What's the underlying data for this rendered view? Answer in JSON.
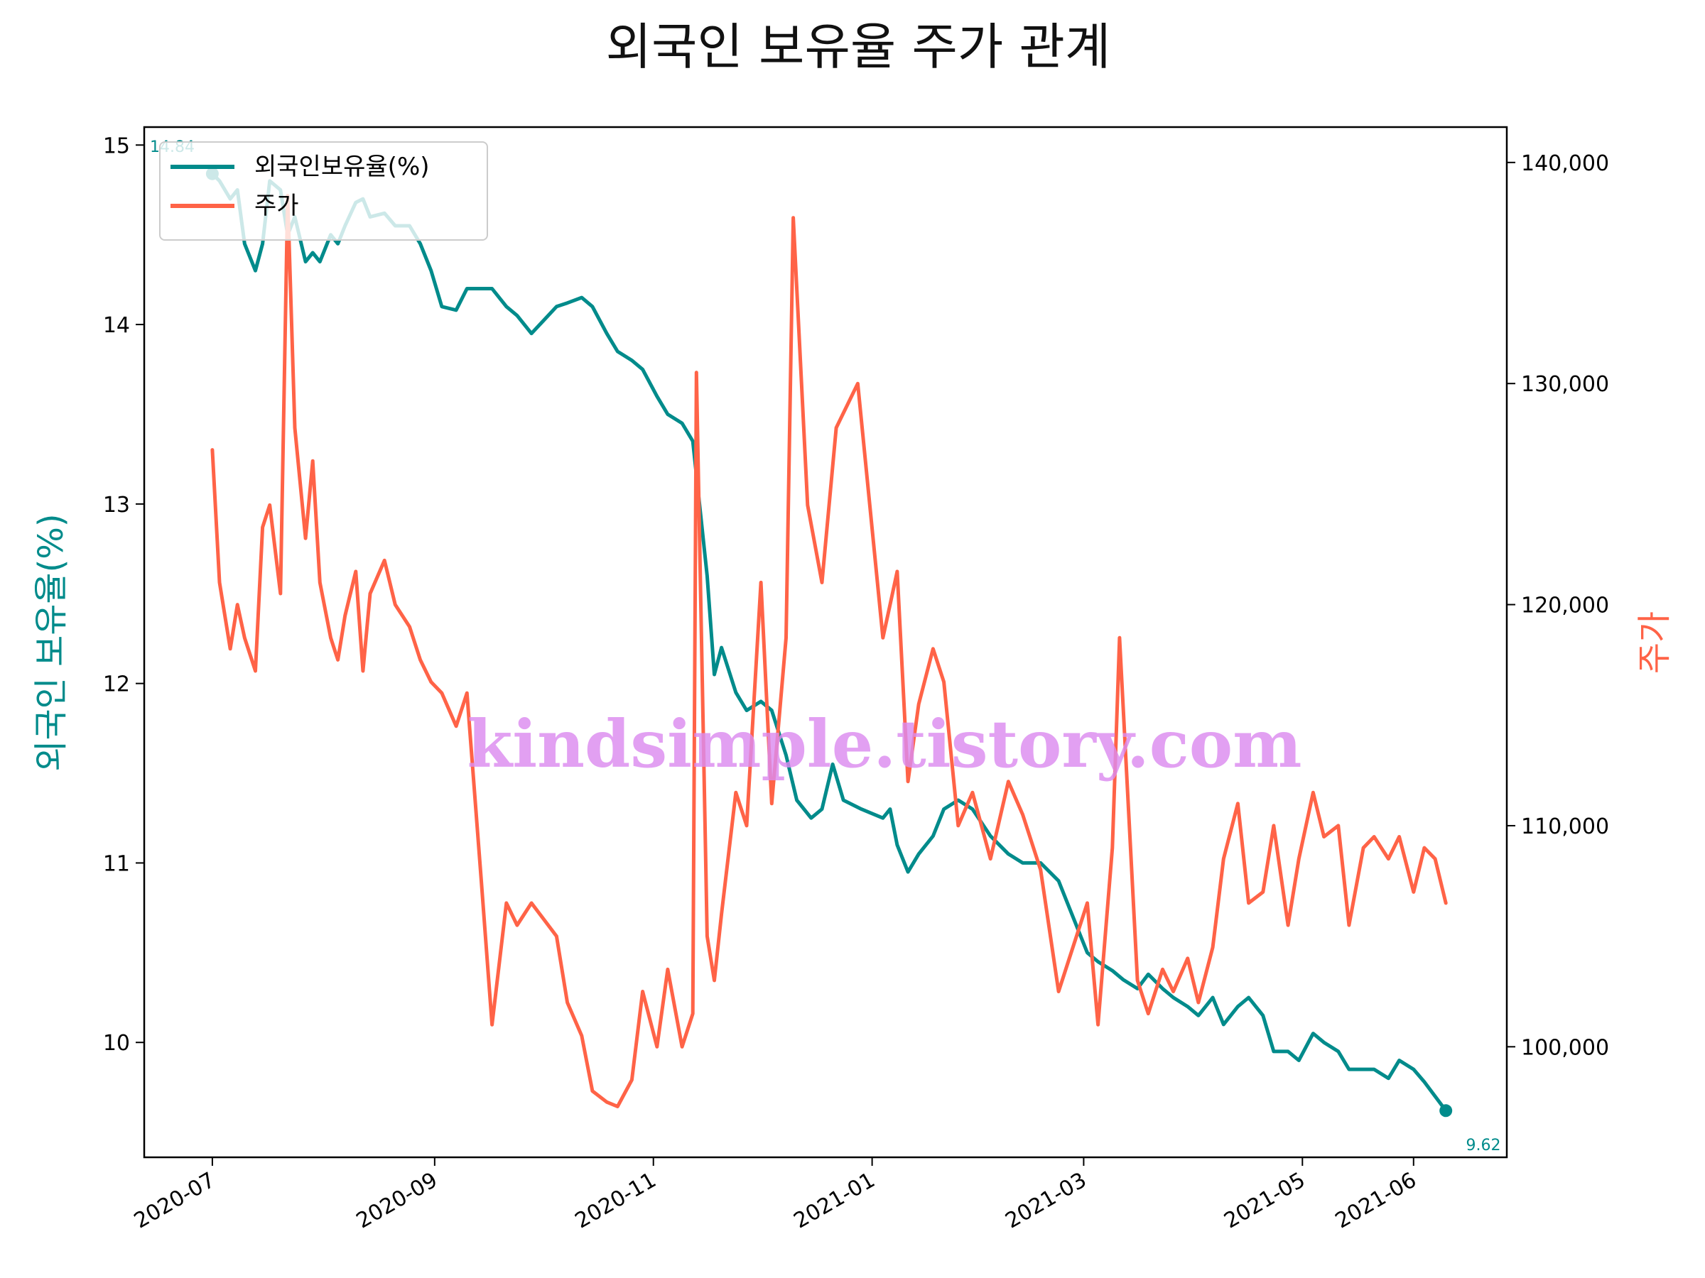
{
  "chart_data": {
    "type": "line",
    "title": "외국인 보유율 주가 관계",
    "y_left_label": "외국인 보유율(%)",
    "y_right_label": "주가",
    "x_ticks": [
      "2020-07",
      "2020-09",
      "2020-11",
      "2021-01",
      "2021-03",
      "2021-05",
      "2021-06"
    ],
    "y_left_ticks": [
      "10",
      "11",
      "12",
      "13",
      "14",
      "15"
    ],
    "y_right_ticks": [
      "100,000",
      "110,000",
      "120,000",
      "130,000",
      "140,000"
    ],
    "y_left_range": [
      9.36,
      15.1
    ],
    "y_right_range": [
      95000,
      141600
    ],
    "x_range": [
      "2020-06-12",
      "2021-06-27"
    ],
    "grid": false,
    "legend_position": "upper-left",
    "watermark": "kindsimple.tistory.com",
    "start_label": "14.84",
    "end_label": "9.62",
    "colors": {
      "ownership": "#008b8b",
      "price": "#ff6347",
      "watermark": "#dc8cf0"
    },
    "series": [
      {
        "name": "외국인보유율(%)",
        "axis": "left",
        "points": [
          [
            "2020-07-01",
            14.84
          ],
          [
            "2020-07-03",
            14.8
          ],
          [
            "2020-07-06",
            14.7
          ],
          [
            "2020-07-08",
            14.75
          ],
          [
            "2020-07-10",
            14.45
          ],
          [
            "2020-07-13",
            14.3
          ],
          [
            "2020-07-15",
            14.45
          ],
          [
            "2020-07-17",
            14.8
          ],
          [
            "2020-07-20",
            14.75
          ],
          [
            "2020-07-22",
            14.5
          ],
          [
            "2020-07-24",
            14.6
          ],
          [
            "2020-07-27",
            14.35
          ],
          [
            "2020-07-29",
            14.4
          ],
          [
            "2020-07-31",
            14.35
          ],
          [
            "2020-08-03",
            14.5
          ],
          [
            "2020-08-05",
            14.45
          ],
          [
            "2020-08-07",
            14.55
          ],
          [
            "2020-08-10",
            14.68
          ],
          [
            "2020-08-12",
            14.7
          ],
          [
            "2020-08-14",
            14.6
          ],
          [
            "2020-08-18",
            14.62
          ],
          [
            "2020-08-21",
            14.55
          ],
          [
            "2020-08-25",
            14.55
          ],
          [
            "2020-08-28",
            14.45
          ],
          [
            "2020-08-31",
            14.3
          ],
          [
            "2020-09-03",
            14.1
          ],
          [
            "2020-09-07",
            14.08
          ],
          [
            "2020-09-10",
            14.2
          ],
          [
            "2020-09-14",
            14.2
          ],
          [
            "2020-09-17",
            14.2
          ],
          [
            "2020-09-21",
            14.1
          ],
          [
            "2020-09-24",
            14.05
          ],
          [
            "2020-09-28",
            13.95
          ],
          [
            "2020-10-05",
            14.1
          ],
          [
            "2020-10-08",
            14.12
          ],
          [
            "2020-10-12",
            14.15
          ],
          [
            "2020-10-15",
            14.1
          ],
          [
            "2020-10-19",
            13.95
          ],
          [
            "2020-10-22",
            13.85
          ],
          [
            "2020-10-26",
            13.8
          ],
          [
            "2020-10-29",
            13.75
          ],
          [
            "2020-11-02",
            13.6
          ],
          [
            "2020-11-05",
            13.5
          ],
          [
            "2020-11-09",
            13.45
          ],
          [
            "2020-11-12",
            13.35
          ],
          [
            "2020-11-16",
            12.6
          ],
          [
            "2020-11-18",
            12.05
          ],
          [
            "2020-11-20",
            12.2
          ],
          [
            "2020-11-24",
            11.95
          ],
          [
            "2020-11-27",
            11.85
          ],
          [
            "2020-12-01",
            11.9
          ],
          [
            "2020-12-04",
            11.85
          ],
          [
            "2020-12-08",
            11.6
          ],
          [
            "2020-12-11",
            11.35
          ],
          [
            "2020-12-15",
            11.25
          ],
          [
            "2020-12-18",
            11.3
          ],
          [
            "2020-12-21",
            11.55
          ],
          [
            "2020-12-24",
            11.35
          ],
          [
            "2020-12-29",
            11.3
          ],
          [
            "2021-01-04",
            11.25
          ],
          [
            "2021-01-06",
            11.3
          ],
          [
            "2021-01-08",
            11.1
          ],
          [
            "2021-01-11",
            10.95
          ],
          [
            "2021-01-14",
            11.05
          ],
          [
            "2021-01-18",
            11.15
          ],
          [
            "2021-01-21",
            11.3
          ],
          [
            "2021-01-25",
            11.35
          ],
          [
            "2021-01-29",
            11.3
          ],
          [
            "2021-02-03",
            11.15
          ],
          [
            "2021-02-08",
            11.05
          ],
          [
            "2021-02-12",
            11.0
          ],
          [
            "2021-02-17",
            11.0
          ],
          [
            "2021-02-22",
            10.9
          ],
          [
            "2021-02-25",
            10.75
          ],
          [
            "2021-03-02",
            10.5
          ],
          [
            "2021-03-05",
            10.45
          ],
          [
            "2021-03-09",
            10.4
          ],
          [
            "2021-03-12",
            10.35
          ],
          [
            "2021-03-16",
            10.3
          ],
          [
            "2021-03-19",
            10.38
          ],
          [
            "2021-03-23",
            10.3
          ],
          [
            "2021-03-26",
            10.25
          ],
          [
            "2021-03-30",
            10.2
          ],
          [
            "2021-04-02",
            10.15
          ],
          [
            "2021-04-06",
            10.25
          ],
          [
            "2021-04-09",
            10.1
          ],
          [
            "2021-04-13",
            10.2
          ],
          [
            "2021-04-16",
            10.25
          ],
          [
            "2021-04-20",
            10.15
          ],
          [
            "2021-04-23",
            9.95
          ],
          [
            "2021-04-27",
            9.95
          ],
          [
            "2021-04-30",
            9.9
          ],
          [
            "2021-05-04",
            10.05
          ],
          [
            "2021-05-07",
            10.0
          ],
          [
            "2021-05-11",
            9.95
          ],
          [
            "2021-05-14",
            9.85
          ],
          [
            "2021-05-18",
            9.85
          ],
          [
            "2021-05-21",
            9.85
          ],
          [
            "2021-05-25",
            9.8
          ],
          [
            "2021-05-28",
            9.9
          ],
          [
            "2021-06-01",
            9.85
          ],
          [
            "2021-06-04",
            9.78
          ],
          [
            "2021-06-07",
            9.7
          ],
          [
            "2021-06-10",
            9.62
          ]
        ]
      },
      {
        "name": "주가",
        "axis": "right",
        "points": [
          [
            "2020-07-01",
            127000
          ],
          [
            "2020-07-03",
            121000
          ],
          [
            "2020-07-06",
            118000
          ],
          [
            "2020-07-08",
            120000
          ],
          [
            "2020-07-10",
            118500
          ],
          [
            "2020-07-13",
            117000
          ],
          [
            "2020-07-15",
            123500
          ],
          [
            "2020-07-17",
            124500
          ],
          [
            "2020-07-20",
            120500
          ],
          [
            "2020-07-22",
            138500
          ],
          [
            "2020-07-24",
            128000
          ],
          [
            "2020-07-27",
            123000
          ],
          [
            "2020-07-29",
            126500
          ],
          [
            "2020-07-31",
            121000
          ],
          [
            "2020-08-03",
            118500
          ],
          [
            "2020-08-05",
            117500
          ],
          [
            "2020-08-07",
            119500
          ],
          [
            "2020-08-10",
            121500
          ],
          [
            "2020-08-12",
            117000
          ],
          [
            "2020-08-14",
            120500
          ],
          [
            "2020-08-18",
            122000
          ],
          [
            "2020-08-21",
            120000
          ],
          [
            "2020-08-25",
            119000
          ],
          [
            "2020-08-28",
            117500
          ],
          [
            "2020-08-31",
            116500
          ],
          [
            "2020-09-03",
            116000
          ],
          [
            "2020-09-07",
            114500
          ],
          [
            "2020-09-10",
            116000
          ],
          [
            "2020-09-14",
            107500
          ],
          [
            "2020-09-17",
            101000
          ],
          [
            "2020-09-21",
            106500
          ],
          [
            "2020-09-24",
            105500
          ],
          [
            "2020-09-28",
            106500
          ],
          [
            "2020-10-05",
            105000
          ],
          [
            "2020-10-08",
            102000
          ],
          [
            "2020-10-12",
            100500
          ],
          [
            "2020-10-15",
            98000
          ],
          [
            "2020-10-19",
            97500
          ],
          [
            "2020-10-22",
            97300
          ],
          [
            "2020-10-26",
            98500
          ],
          [
            "2020-10-29",
            102500
          ],
          [
            "2020-11-02",
            100000
          ],
          [
            "2020-11-05",
            103500
          ],
          [
            "2020-11-09",
            100000
          ],
          [
            "2020-11-12",
            101500
          ],
          [
            "2020-11-13",
            130500
          ],
          [
            "2020-11-16",
            105000
          ],
          [
            "2020-11-18",
            103000
          ],
          [
            "2020-11-20",
            106000
          ],
          [
            "2020-11-24",
            111500
          ],
          [
            "2020-11-27",
            110000
          ],
          [
            "2020-12-01",
            121000
          ],
          [
            "2020-12-04",
            111000
          ],
          [
            "2020-12-08",
            118500
          ],
          [
            "2020-12-10",
            137500
          ],
          [
            "2020-12-14",
            124500
          ],
          [
            "2020-12-18",
            121000
          ],
          [
            "2020-12-22",
            128000
          ],
          [
            "2020-12-28",
            130000
          ],
          [
            "2021-01-04",
            118500
          ],
          [
            "2021-01-06",
            120000
          ],
          [
            "2021-01-08",
            121500
          ],
          [
            "2021-01-11",
            112000
          ],
          [
            "2021-01-14",
            115500
          ],
          [
            "2021-01-18",
            118000
          ],
          [
            "2021-01-21",
            116500
          ],
          [
            "2021-01-25",
            110000
          ],
          [
            "2021-01-29",
            111500
          ],
          [
            "2021-02-03",
            108500
          ],
          [
            "2021-02-08",
            112000
          ],
          [
            "2021-02-12",
            110500
          ],
          [
            "2021-02-17",
            108000
          ],
          [
            "2021-02-22",
            102500
          ],
          [
            "2021-02-25",
            104000
          ],
          [
            "2021-03-02",
            106500
          ],
          [
            "2021-03-05",
            101000
          ],
          [
            "2021-03-09",
            109000
          ],
          [
            "2021-03-11",
            118500
          ],
          [
            "2021-03-16",
            103000
          ],
          [
            "2021-03-19",
            101500
          ],
          [
            "2021-03-23",
            103500
          ],
          [
            "2021-03-26",
            102500
          ],
          [
            "2021-03-30",
            104000
          ],
          [
            "2021-04-02",
            102000
          ],
          [
            "2021-04-06",
            104500
          ],
          [
            "2021-04-09",
            108500
          ],
          [
            "2021-04-13",
            111000
          ],
          [
            "2021-04-16",
            106500
          ],
          [
            "2021-04-20",
            107000
          ],
          [
            "2021-04-23",
            110000
          ],
          [
            "2021-04-27",
            105500
          ],
          [
            "2021-04-30",
            108500
          ],
          [
            "2021-05-04",
            111500
          ],
          [
            "2021-05-07",
            109500
          ],
          [
            "2021-05-11",
            110000
          ],
          [
            "2021-05-14",
            105500
          ],
          [
            "2021-05-18",
            109000
          ],
          [
            "2021-05-21",
            109500
          ],
          [
            "2021-05-25",
            108500
          ],
          [
            "2021-05-28",
            109500
          ],
          [
            "2021-06-01",
            107000
          ],
          [
            "2021-06-04",
            109000
          ],
          [
            "2021-06-07",
            108500
          ],
          [
            "2021-06-10",
            106500
          ]
        ]
      }
    ]
  }
}
